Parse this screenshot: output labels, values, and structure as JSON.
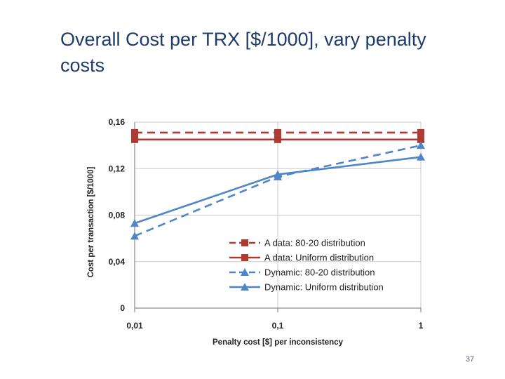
{
  "slide": {
    "title": "Overall Cost per TRX [$/1000], vary penalty costs",
    "page_number": "37"
  },
  "colors": {
    "red_series": "#b03a32",
    "blue_series": "#4f86c6",
    "grid": "#c8c8c8",
    "axis": "#8c8c8c",
    "title": "#1f3b6b"
  },
  "chart_data": {
    "type": "line",
    "title": "",
    "xlabel": "Penalty cost [$] per inconsistency",
    "ylabel": "Cost per transaction [$/1000]",
    "x_scale": "log",
    "categories": [
      "0,01",
      "0,1",
      "1"
    ],
    "x": [
      0.01,
      0.1,
      1
    ],
    "yticks": [
      0,
      0.04,
      0.08,
      0.12,
      0.16
    ],
    "ytick_labels": [
      "0",
      "0,04",
      "0,08",
      "0,12",
      "0,16"
    ],
    "ylim": [
      0,
      0.16
    ],
    "grid": true,
    "legend_position": "bottom-right",
    "series": [
      {
        "name": "A data: 80-20 distribution",
        "values": [
          0.151,
          0.151,
          0.151
        ],
        "color": "#b03a32",
        "dashed": true,
        "marker": "square"
      },
      {
        "name": "A data: Uniform distribution",
        "values": [
          0.145,
          0.145,
          0.145
        ],
        "color": "#b03a32",
        "dashed": false,
        "marker": "square"
      },
      {
        "name": "Dynamic: 80-20 distribution",
        "values": [
          0.062,
          0.113,
          0.14
        ],
        "color": "#4f86c6",
        "dashed": true,
        "marker": "triangle"
      },
      {
        "name": "Dynamic: Uniform distribution",
        "values": [
          0.073,
          0.115,
          0.13
        ],
        "color": "#4f86c6",
        "dashed": false,
        "marker": "triangle"
      }
    ]
  }
}
